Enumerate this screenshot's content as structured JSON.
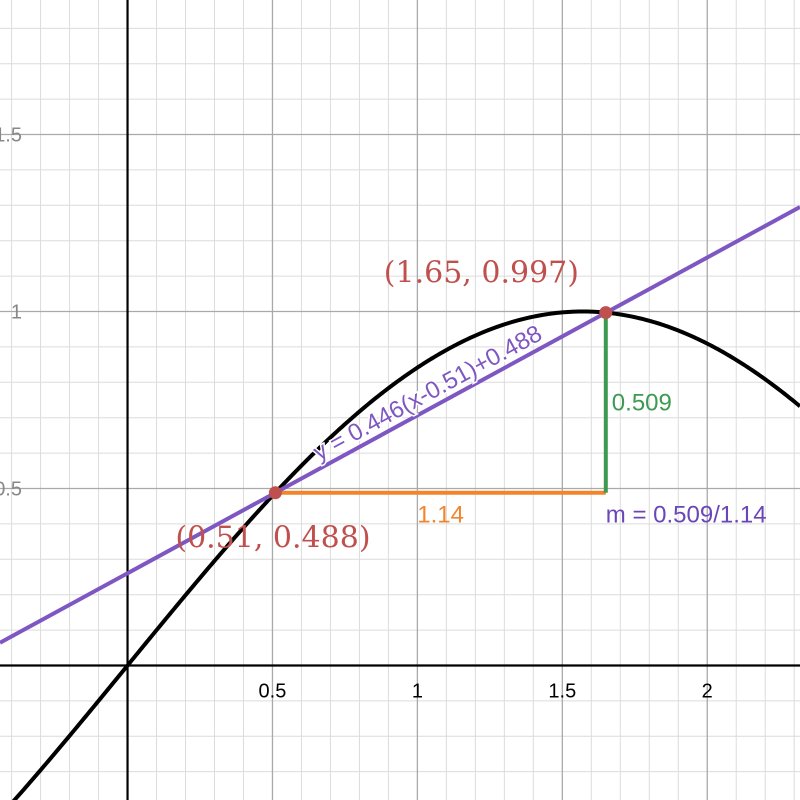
{
  "chart_data": {
    "type": "line",
    "xlim": [
      -0.44,
      2.32
    ],
    "ylim": [
      -0.38,
      1.88
    ],
    "grid": true,
    "x_ticks": [
      {
        "value": 0.5,
        "label": "0.5"
      },
      {
        "value": 1,
        "label": "1"
      },
      {
        "value": 1.5,
        "label": "1.5"
      },
      {
        "value": 2,
        "label": "2"
      }
    ],
    "y_ticks": [
      {
        "value": 0.5,
        "label": "0.5"
      },
      {
        "value": 1,
        "label": "1"
      },
      {
        "value": 1.5,
        "label": "1.5"
      }
    ],
    "curve": {
      "function": "sin",
      "color": "#000000"
    },
    "tangent_line": {
      "label": "y = 0.446(x-0.51)+0.488",
      "slope": 0.446,
      "x0": 0.51,
      "y0": 0.488,
      "color": "#7e57c2"
    },
    "points": [
      {
        "x": 0.51,
        "y": 0.488,
        "label": "(0.51, 0.488)",
        "color": "#c0504d"
      },
      {
        "x": 1.65,
        "y": 0.997,
        "label": "(1.65, 0.997)",
        "color": "#c0504d"
      }
    ],
    "run": {
      "from": [
        0.51,
        0.488
      ],
      "to": [
        1.65,
        0.488
      ],
      "label": "1.14",
      "color": "#f0852d"
    },
    "rise": {
      "from": [
        1.65,
        0.488
      ],
      "to": [
        1.65,
        0.997
      ],
      "label": "0.509",
      "color": "#3d9a50"
    },
    "slope_annotation": {
      "label": "m  =  0.509/1.14",
      "color": "#6b46b8"
    }
  }
}
